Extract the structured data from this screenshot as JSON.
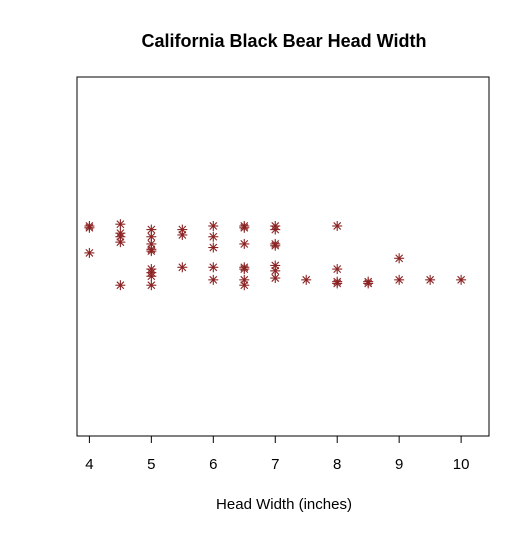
{
  "chart_data": {
    "type": "scatter",
    "title": "California Black Bear Head Width",
    "xlabel": "Head Width (inches)",
    "ylabel": "",
    "xlim": [
      3.8,
      10.45
    ],
    "ylim": [
      0,
      1
    ],
    "xticks": [
      4,
      5,
      6,
      7,
      8,
      9,
      10
    ],
    "grid": false,
    "legend": "none",
    "marker": "asterisk",
    "marker_color": "#8b2323",
    "points": [
      {
        "x": 4,
        "y": 0.585
      },
      {
        "x": 4,
        "y": 0.58
      },
      {
        "x": 4,
        "y": 0.51
      },
      {
        "x": 4.5,
        "y": 0.59
      },
      {
        "x": 4.5,
        "y": 0.565
      },
      {
        "x": 4.5,
        "y": 0.555
      },
      {
        "x": 4.5,
        "y": 0.54
      },
      {
        "x": 4.5,
        "y": 0.42
      },
      {
        "x": 5,
        "y": 0.575
      },
      {
        "x": 5,
        "y": 0.555
      },
      {
        "x": 5,
        "y": 0.535
      },
      {
        "x": 5,
        "y": 0.52
      },
      {
        "x": 5,
        "y": 0.515
      },
      {
        "x": 5,
        "y": 0.465
      },
      {
        "x": 5,
        "y": 0.455
      },
      {
        "x": 5,
        "y": 0.445
      },
      {
        "x": 5,
        "y": 0.42
      },
      {
        "x": 5.5,
        "y": 0.575
      },
      {
        "x": 5.5,
        "y": 0.56
      },
      {
        "x": 5.5,
        "y": 0.47
      },
      {
        "x": 6,
        "y": 0.585
      },
      {
        "x": 6,
        "y": 0.555
      },
      {
        "x": 6,
        "y": 0.525
      },
      {
        "x": 6,
        "y": 0.47
      },
      {
        "x": 6,
        "y": 0.435
      },
      {
        "x": 6.5,
        "y": 0.585
      },
      {
        "x": 6.5,
        "y": 0.58
      },
      {
        "x": 6.5,
        "y": 0.535
      },
      {
        "x": 6.5,
        "y": 0.47
      },
      {
        "x": 6.5,
        "y": 0.465
      },
      {
        "x": 6.5,
        "y": 0.435
      },
      {
        "x": 6.5,
        "y": 0.42
      },
      {
        "x": 7,
        "y": 0.585
      },
      {
        "x": 7,
        "y": 0.575
      },
      {
        "x": 7,
        "y": 0.535
      },
      {
        "x": 7,
        "y": 0.53
      },
      {
        "x": 7,
        "y": 0.475
      },
      {
        "x": 7,
        "y": 0.46
      },
      {
        "x": 7,
        "y": 0.44
      },
      {
        "x": 7.5,
        "y": 0.435
      },
      {
        "x": 8,
        "y": 0.585
      },
      {
        "x": 8,
        "y": 0.465
      },
      {
        "x": 8,
        "y": 0.43
      },
      {
        "x": 8,
        "y": 0.425
      },
      {
        "x": 8.5,
        "y": 0.43
      },
      {
        "x": 8.5,
        "y": 0.425
      },
      {
        "x": 9,
        "y": 0.495
      },
      {
        "x": 9,
        "y": 0.435
      },
      {
        "x": 9.5,
        "y": 0.435
      },
      {
        "x": 10,
        "y": 0.435
      }
    ]
  }
}
